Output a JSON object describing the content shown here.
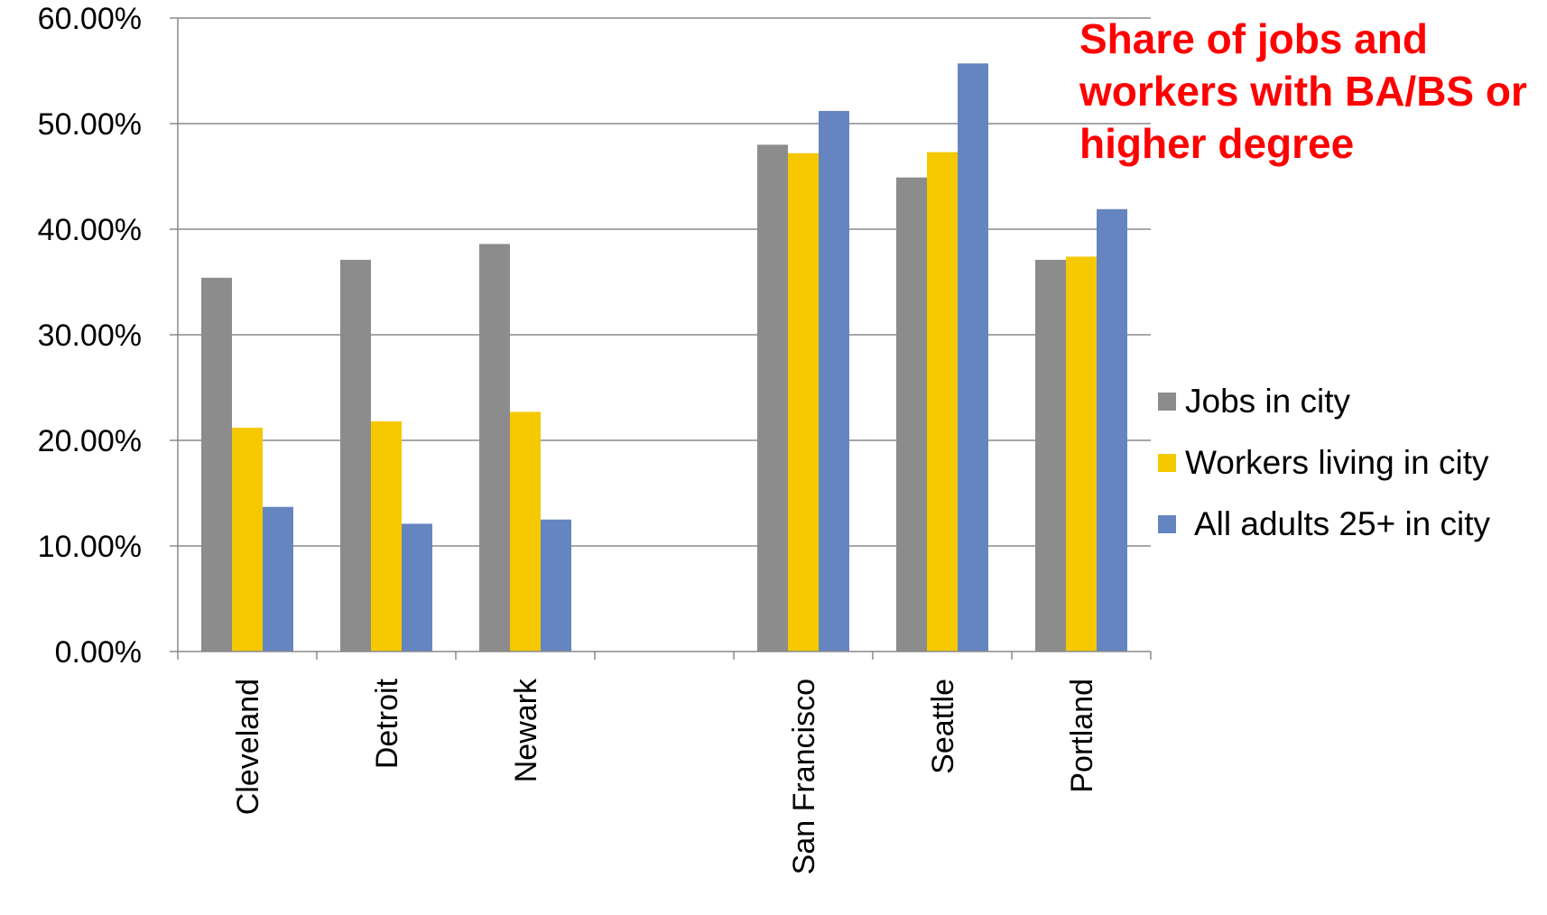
{
  "chart_data": {
    "type": "bar",
    "title": "Share of jobs and workers with BA/BS or higher degree",
    "xlabel": "",
    "ylabel": "",
    "ylim": [
      0,
      60
    ],
    "ytick_values": [
      0,
      10,
      20,
      30,
      40,
      50,
      60
    ],
    "ytick_labels": [
      "0.00%",
      "10.00%",
      "20.00%",
      "30.00%",
      "40.00%",
      "50.00%",
      "60.00%"
    ],
    "categories": [
      "Cleveland",
      "Detroit",
      "Newark",
      "",
      "San Francisco",
      "Seattle",
      "Portland"
    ],
    "series": [
      {
        "name": "Jobs in city",
        "color": "#8c8c8c",
        "values": [
          35.4,
          37.1,
          38.6,
          null,
          48.0,
          44.9,
          37.1
        ]
      },
      {
        "name": "Workers living in city",
        "color": "#f5c800",
        "values": [
          21.2,
          21.8,
          22.7,
          null,
          47.2,
          47.3,
          37.4
        ]
      },
      {
        "name": "All adults 25+ in city",
        "color": "#6585c0",
        "values": [
          13.7,
          12.1,
          12.5,
          null,
          51.2,
          55.7,
          41.9
        ]
      }
    ],
    "grid": true,
    "legend_position": "right"
  }
}
